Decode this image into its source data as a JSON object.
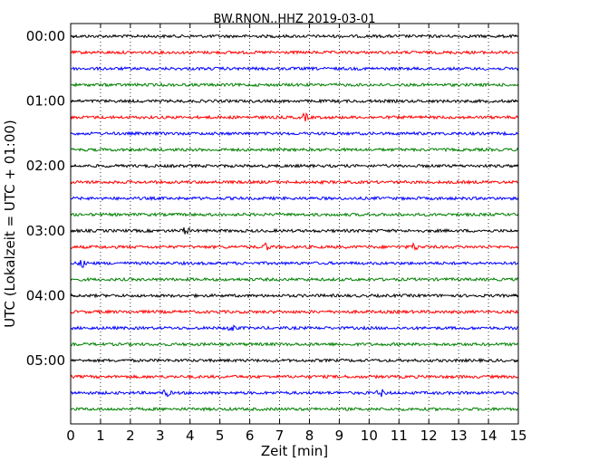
{
  "chart_data": {
    "type": "line",
    "title": "BW.RNON..HHZ 2019-03-01",
    "xlabel": "Zeit  [min]",
    "ylabel": "UTC (Lokalzeit = UTC + 01:00)",
    "xlim": [
      0,
      15
    ],
    "x_ticks": [
      "0",
      "1",
      "2",
      "3",
      "4",
      "5",
      "6",
      "7",
      "8",
      "9",
      "10",
      "11",
      "12",
      "13",
      "14",
      "15"
    ],
    "y_ticks": [
      "00:00",
      "01:00",
      "02:00",
      "03:00",
      "04:00",
      "05:00"
    ],
    "grid": "vertical dotted",
    "trace_interval_min": 15,
    "trace_colors": [
      "#000000",
      "#ff0000",
      "#0000ff",
      "#008000"
    ],
    "traces": [
      {
        "start": "00:00",
        "color": "#000000",
        "events": []
      },
      {
        "start": "00:15",
        "color": "#ff0000",
        "events": []
      },
      {
        "start": "00:30",
        "color": "#0000ff",
        "events": []
      },
      {
        "start": "00:45",
        "color": "#008000",
        "events": []
      },
      {
        "start": "01:00",
        "color": "#000000",
        "events": []
      },
      {
        "start": "01:15",
        "color": "#ff0000",
        "events": [
          7.85
        ]
      },
      {
        "start": "01:30",
        "color": "#0000ff",
        "events": []
      },
      {
        "start": "01:45",
        "color": "#008000",
        "events": []
      },
      {
        "start": "02:00",
        "color": "#000000",
        "events": []
      },
      {
        "start": "02:15",
        "color": "#ff0000",
        "events": []
      },
      {
        "start": "02:30",
        "color": "#0000ff",
        "events": []
      },
      {
        "start": "02:45",
        "color": "#008000",
        "events": []
      },
      {
        "start": "03:00",
        "color": "#000000",
        "events": [
          3.85
        ]
      },
      {
        "start": "03:15",
        "color": "#ff0000",
        "events": [
          6.55,
          11.5
        ]
      },
      {
        "start": "03:30",
        "color": "#0000ff",
        "events": [
          0.4
        ]
      },
      {
        "start": "03:45",
        "color": "#008000",
        "events": []
      },
      {
        "start": "04:00",
        "color": "#000000",
        "events": []
      },
      {
        "start": "04:15",
        "color": "#ff0000",
        "events": []
      },
      {
        "start": "04:30",
        "color": "#0000ff",
        "events": [
          5.4
        ]
      },
      {
        "start": "04:45",
        "color": "#008000",
        "events": []
      },
      {
        "start": "05:00",
        "color": "#000000",
        "events": []
      },
      {
        "start": "05:15",
        "color": "#ff0000",
        "events": []
      },
      {
        "start": "05:30",
        "color": "#0000ff",
        "events": [
          3.2,
          10.4
        ]
      },
      {
        "start": "05:45",
        "color": "#008000",
        "events": []
      }
    ]
  }
}
